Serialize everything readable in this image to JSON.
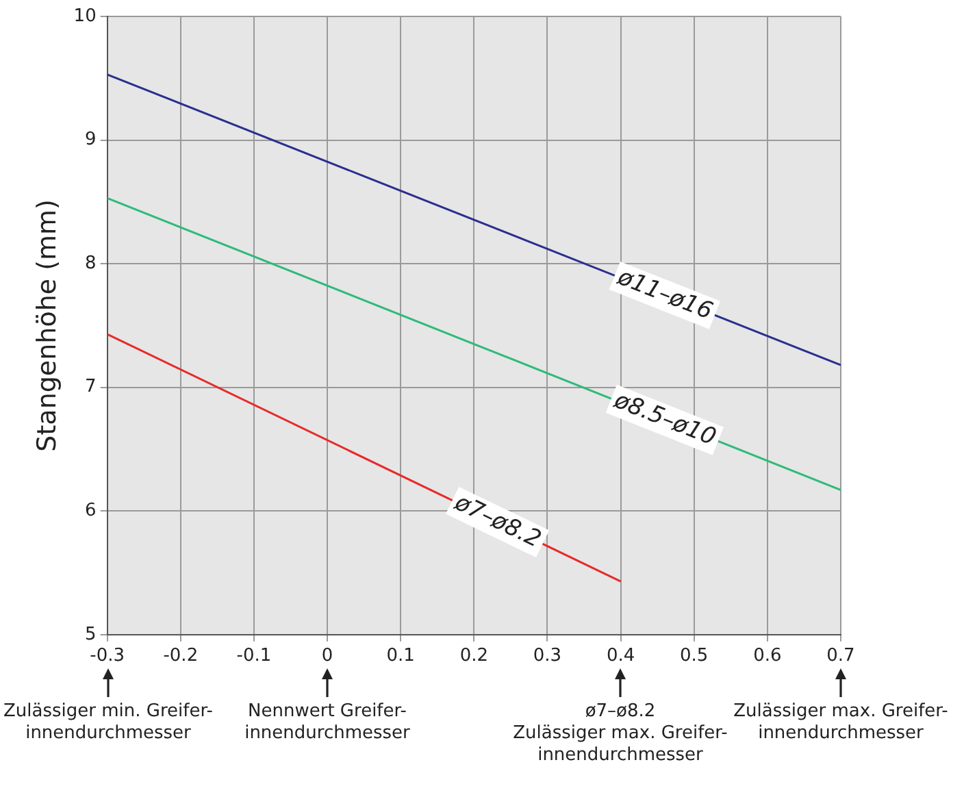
{
  "chart_data": {
    "type": "line",
    "ylabel": "Stangenhöhe (mm)",
    "xlim": [
      -0.3,
      0.7
    ],
    "xticks": [
      -0.3,
      -0.2,
      -0.1,
      0,
      0.1,
      0.2,
      0.3,
      0.4,
      0.5,
      0.6,
      0.7
    ],
    "ylim": [
      5,
      10
    ],
    "yticks": [
      5,
      6,
      7,
      8,
      9,
      10
    ],
    "grid": true,
    "legend": false,
    "marker": "none",
    "line_style": "solid",
    "series": [
      {
        "name": "ø11–ø16",
        "color": "#2b2f8f",
        "x": [
          -0.3,
          0.7
        ],
        "values": [
          9.53,
          7.18
        ]
      },
      {
        "name": "ø8.5–ø10",
        "color": "#2dbb7a",
        "x": [
          -0.3,
          0.7
        ],
        "values": [
          8.53,
          6.17
        ]
      },
      {
        "name": "ø7–ø8.2",
        "color": "#e82a2a",
        "x": [
          -0.3,
          0.4
        ],
        "values": [
          7.43,
          5.43
        ]
      }
    ],
    "annotations": [
      "Zulässiger min. Greifer-\ninnendurchmesser",
      "Nennwert Greifer-\ninnendurchmesser",
      "ø7–ø8.2\nZulässiger max. Greifer-\ninnendurchmesser",
      "Zulässiger max. Greifer-\ninnendurchmesser"
    ]
  }
}
